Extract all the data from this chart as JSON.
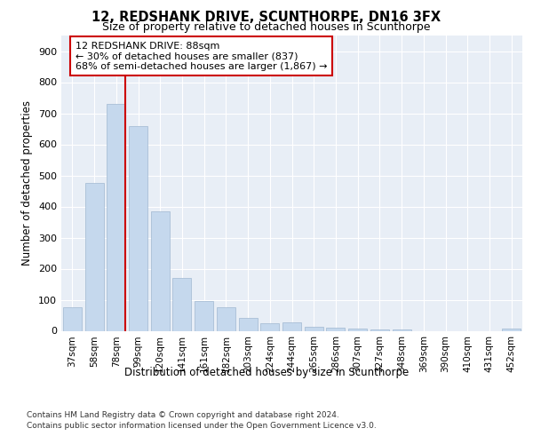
{
  "title1": "12, REDSHANK DRIVE, SCUNTHORPE, DN16 3FX",
  "title2": "Size of property relative to detached houses in Scunthorpe",
  "xlabel": "Distribution of detached houses by size in Scunthorpe",
  "ylabel": "Number of detached properties",
  "categories": [
    "37sqm",
    "58sqm",
    "78sqm",
    "99sqm",
    "120sqm",
    "141sqm",
    "161sqm",
    "182sqm",
    "203sqm",
    "224sqm",
    "244sqm",
    "265sqm",
    "286sqm",
    "307sqm",
    "327sqm",
    "348sqm",
    "369sqm",
    "390sqm",
    "410sqm",
    "431sqm",
    "452sqm"
  ],
  "values": [
    75,
    475,
    730,
    660,
    383,
    170,
    97,
    77,
    42,
    25,
    28,
    14,
    10,
    8,
    5,
    5,
    0,
    0,
    0,
    0,
    7
  ],
  "bar_color": "#c5d8ed",
  "bar_edge_color": "#a0b8d0",
  "vline_x_index": 2,
  "vline_color": "#cc0000",
  "annotation_text": "12 REDSHANK DRIVE: 88sqm\n← 30% of detached houses are smaller (837)\n68% of semi-detached houses are larger (1,867) →",
  "annotation_box_color": "#ffffff",
  "annotation_box_edge_color": "#cc0000",
  "ylim": [
    0,
    950
  ],
  "yticks": [
    0,
    100,
    200,
    300,
    400,
    500,
    600,
    700,
    800,
    900
  ],
  "background_color": "#e8eef6",
  "footer1": "Contains HM Land Registry data © Crown copyright and database right 2024.",
  "footer2": "Contains public sector information licensed under the Open Government Licence v3.0."
}
